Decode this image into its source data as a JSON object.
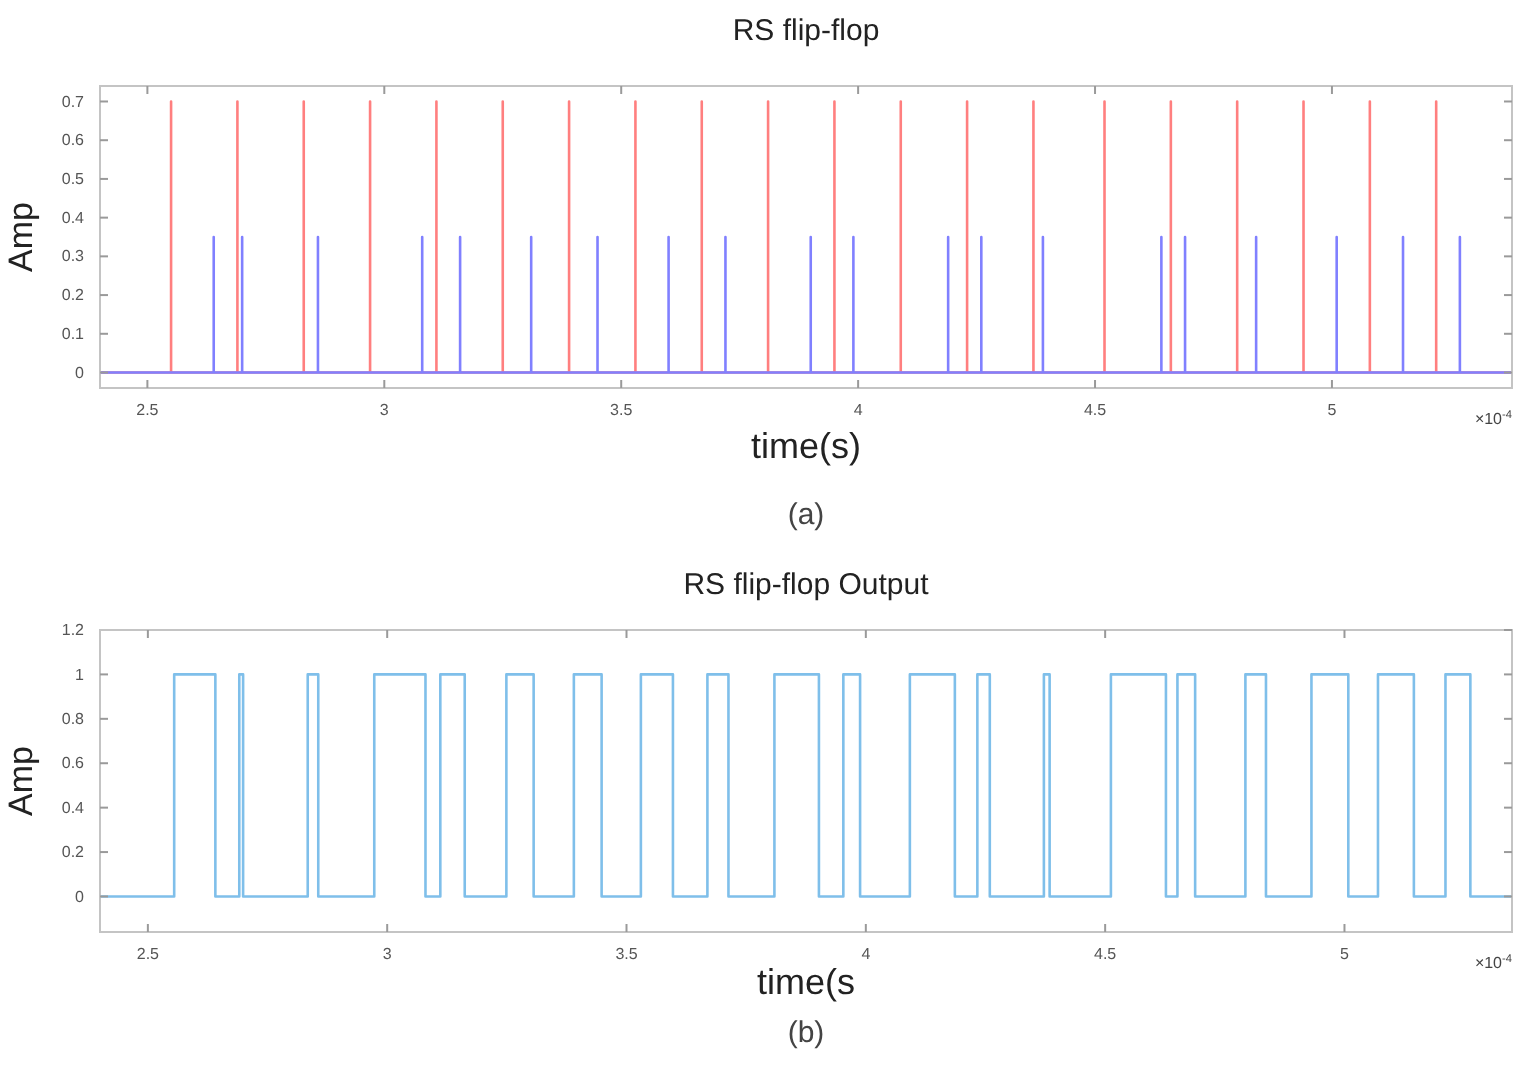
{
  "chart_data": [
    {
      "type": "line",
      "title": "RS flip-flop",
      "xlabel": "time(s)",
      "ylabel": "Amp",
      "annotations": [
        "×10$^{-4}$",
        "(a)"
      ],
      "xlim": [
        2.4,
        5.38
      ],
      "xticks": [
        2.5,
        3,
        3.5,
        4,
        4.5,
        5
      ],
      "ylim": [
        -0.04,
        0.74
      ],
      "yticks": [
        0,
        0.1,
        0.2,
        0.3,
        0.4,
        0.5,
        0.6,
        0.7
      ],
      "grid": false,
      "series": [
        {
          "color": "#ff7f7f",
          "x": [
            2.4,
            2.55,
            2.55,
            2.55,
            2.69,
            2.69,
            2.69,
            2.83,
            2.83,
            2.83,
            2.97,
            2.97,
            2.97,
            3.11,
            3.11,
            3.11,
            3.25,
            3.25,
            3.25,
            3.39,
            3.39,
            3.39,
            3.53,
            3.53,
            3.53,
            3.67,
            3.67,
            3.67,
            3.81,
            3.81,
            3.81,
            3.95,
            3.95,
            3.95,
            4.09,
            4.09,
            4.09,
            4.23,
            4.23,
            4.23,
            4.37,
            4.37,
            4.37,
            4.52,
            4.52,
            4.52,
            4.66,
            4.66,
            4.66,
            4.8,
            4.8,
            4.8,
            4.94,
            4.94,
            4.94,
            5.08,
            5.08,
            5.08,
            5.22,
            5.22,
            5.22,
            5.38
          ],
          "values": [
            0,
            0,
            0.7,
            0,
            0,
            0.7,
            0,
            0,
            0.7,
            0,
            0,
            0.7,
            0,
            0,
            0.7,
            0,
            0,
            0.7,
            0,
            0,
            0.7,
            0,
            0,
            0.7,
            0,
            0,
            0.7,
            0,
            0,
            0.7,
            0,
            0,
            0.7,
            0,
            0,
            0.7,
            0,
            0,
            0.7,
            0,
            0,
            0.7,
            0,
            0,
            0.7,
            0,
            0,
            0.7,
            0,
            0,
            0.7,
            0,
            0,
            0.7,
            0,
            0,
            0.7,
            0,
            0,
            0.7,
            0,
            0
          ]
        },
        {
          "color": "#8080ff",
          "x": [
            2.4,
            2.64,
            2.64,
            2.64,
            2.7,
            2.7,
            2.7,
            2.86,
            2.86,
            2.86,
            3.08,
            3.08,
            3.08,
            3.16,
            3.16,
            3.16,
            3.31,
            3.31,
            3.31,
            3.45,
            3.45,
            3.45,
            3.6,
            3.6,
            3.6,
            3.72,
            3.72,
            3.72,
            3.9,
            3.9,
            3.9,
            3.99,
            3.99,
            3.99,
            4.19,
            4.19,
            4.19,
            4.26,
            4.26,
            4.26,
            4.39,
            4.39,
            4.39,
            4.64,
            4.64,
            4.64,
            4.69,
            4.69,
            4.69,
            4.84,
            4.84,
            4.84,
            5.01,
            5.01,
            5.01,
            5.15,
            5.15,
            5.15,
            5.27,
            5.27,
            5.27,
            5.38
          ],
          "values": [
            0,
            0,
            0.35,
            0,
            0,
            0.35,
            0,
            0,
            0.35,
            0,
            0,
            0.35,
            0,
            0,
            0.35,
            0,
            0,
            0.35,
            0,
            0,
            0.35,
            0,
            0,
            0.35,
            0,
            0,
            0.35,
            0,
            0,
            0.35,
            0,
            0,
            0.35,
            0,
            0,
            0.35,
            0,
            0,
            0.35,
            0,
            0,
            0.35,
            0,
            0,
            0.35,
            0,
            0,
            0.35,
            0,
            0,
            0.35,
            0,
            0,
            0.35,
            0,
            0,
            0.35,
            0,
            0,
            0.35,
            0,
            0
          ]
        }
      ]
    },
    {
      "type": "step",
      "title": "RS flip-flop Output",
      "xlabel": "time(s",
      "ylabel": "Amp",
      "annotations": [
        "×10$^{-4}$",
        "(b)"
      ],
      "xlim": [
        2.4,
        5.35
      ],
      "xticks": [
        2.5,
        3,
        3.5,
        4,
        4.5,
        5
      ],
      "ylim": [
        -0.16,
        1.2
      ],
      "yticks": [
        0,
        0.2,
        0.4,
        0.6,
        0.8,
        1,
        1.2
      ],
      "grid": false,
      "series": [
        {
          "color": "#7fbfea",
          "x": [
            2.4,
            2.555,
            2.641,
            2.691,
            2.699,
            2.834,
            2.856,
            2.973,
            3.08,
            3.111,
            3.162,
            3.249,
            3.306,
            3.39,
            3.448,
            3.53,
            3.597,
            3.669,
            3.713,
            3.809,
            3.902,
            3.953,
            3.988,
            4.092,
            4.186,
            4.233,
            4.259,
            4.372,
            4.384,
            4.512,
            4.627,
            4.651,
            4.688,
            4.793,
            4.836,
            4.931,
            5.008,
            5.07,
            5.145,
            5.211,
            5.263,
            5.35
          ],
          "values": [
            0,
            1,
            0,
            1,
            0,
            1,
            0,
            1,
            0,
            1,
            0,
            1,
            0,
            1,
            0,
            1,
            0,
            1,
            0,
            1,
            0,
            1,
            0,
            1,
            0,
            1,
            0,
            1,
            0,
            1,
            0,
            1,
            0,
            1,
            0,
            1,
            0,
            1,
            0,
            1,
            0,
            0
          ]
        }
      ]
    }
  ]
}
